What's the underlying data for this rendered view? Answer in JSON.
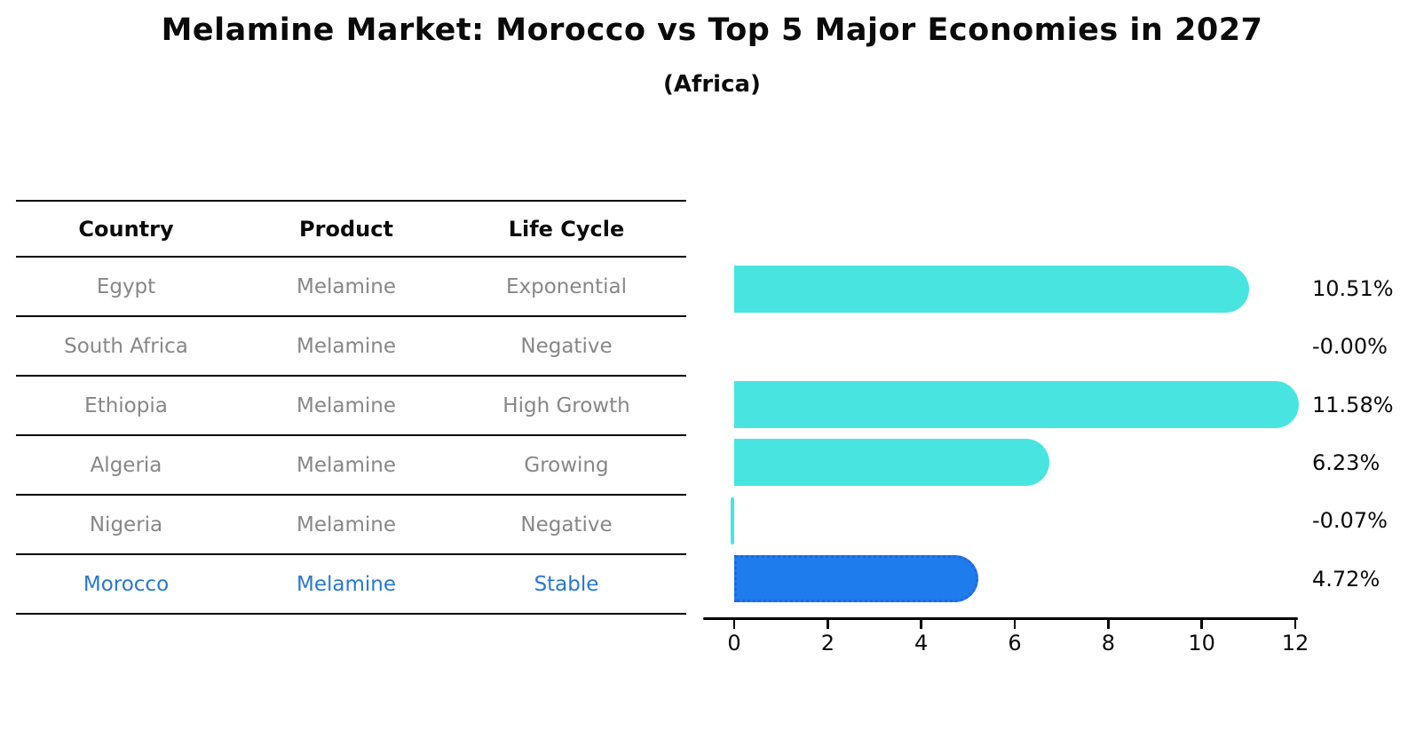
{
  "title": "Melamine Market: Morocco vs Top 5 Major Economies in 2027",
  "subtitle": "(Africa)",
  "table": {
    "headers": [
      "Country",
      "Product",
      "Life Cycle"
    ],
    "rows": [
      {
        "country": "Egypt",
        "product": "Melamine",
        "life_cycle": "Exponential",
        "highlight": false
      },
      {
        "country": "South Africa",
        "product": "Melamine",
        "life_cycle": "Negative",
        "highlight": false
      },
      {
        "country": "Ethiopia",
        "product": "Melamine",
        "life_cycle": "High Growth",
        "highlight": false
      },
      {
        "country": "Algeria",
        "product": "Melamine",
        "life_cycle": "Growing",
        "highlight": false
      },
      {
        "country": "Nigeria",
        "product": "Melamine",
        "life_cycle": "Negative",
        "highlight": false
      },
      {
        "country": "Morocco",
        "product": "Melamine",
        "life_cycle": "Stable",
        "highlight": true
      }
    ]
  },
  "chart_data": {
    "type": "bar",
    "orientation": "horizontal",
    "title": "Melamine Market: Morocco vs Top 5 Major Economies in 2027 (Africa)",
    "categories": [
      "Egypt",
      "South Africa",
      "Ethiopia",
      "Algeria",
      "Nigeria",
      "Morocco"
    ],
    "values": [
      10.51,
      -0.0,
      11.58,
      6.23,
      -0.07,
      4.72
    ],
    "value_labels": [
      "10.51%",
      "-0.00%",
      "11.58%",
      "6.23%",
      "-0.07%",
      "4.72%"
    ],
    "x_ticks": [
      0,
      2,
      4,
      6,
      8,
      10,
      12
    ],
    "xlim": [
      -0.7,
      12.05
    ],
    "grid": false,
    "legend": null,
    "bar_color": "#48e5e0",
    "highlight_bar_color": "#1f7cec",
    "highlight_bar_edge": "#2366dd",
    "highlight_index": 5
  },
  "colors": {
    "background": "#ffffff",
    "text": "#0a0a0a",
    "table_text": "#878787",
    "highlight_text": "#2878d2"
  }
}
